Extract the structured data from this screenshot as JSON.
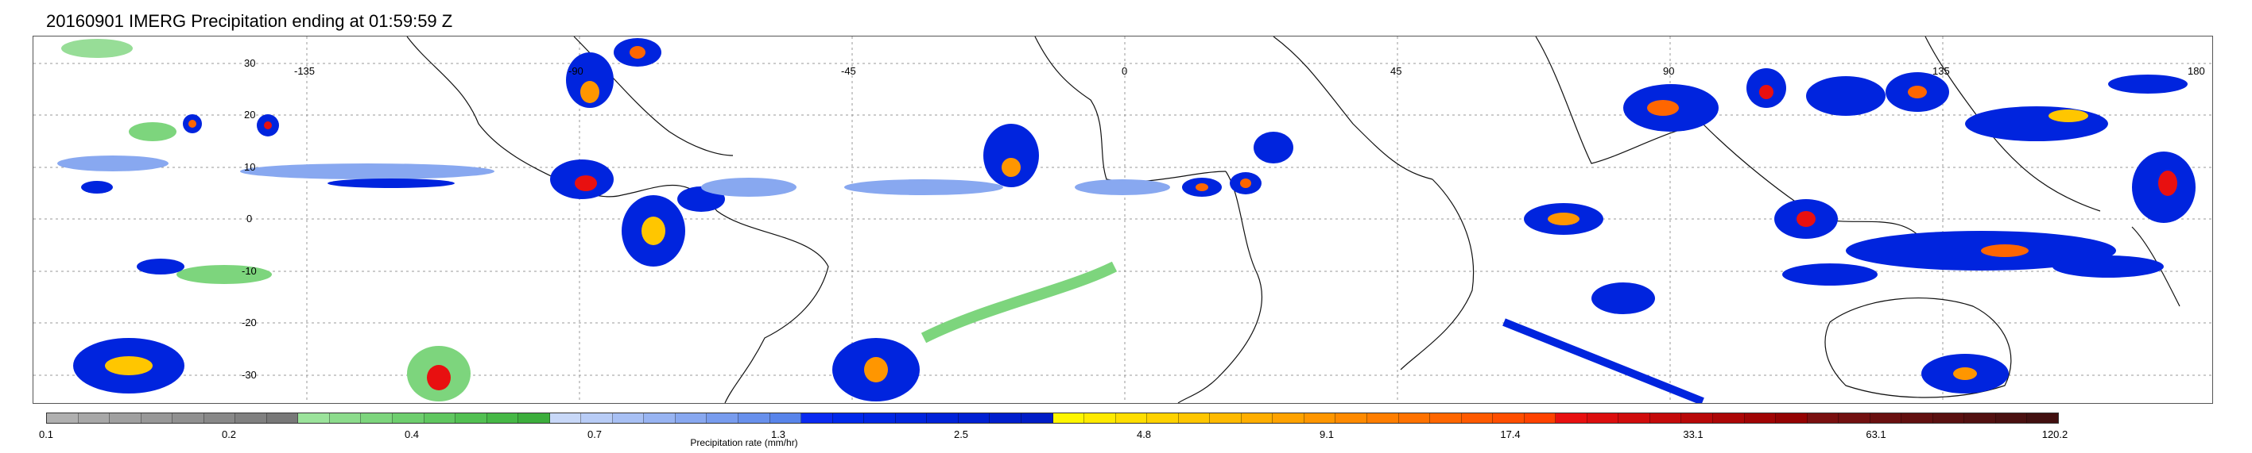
{
  "title": "20160901 IMERG Precipitation ending at 01:59:59 Z",
  "map": {
    "lat_labels": [
      "30",
      "20",
      "10",
      "0",
      "-10",
      "-20",
      "-30"
    ],
    "lon_labels": [
      "-135",
      "-90",
      "-45",
      "0",
      "45",
      "90",
      "135",
      "180"
    ]
  },
  "colorbar": {
    "label": "Precipitation rate (mm/hr)",
    "ticks": [
      "0.1",
      "0.2",
      "0.4",
      "0.7",
      "1.3",
      "2.5",
      "4.8",
      "9.1",
      "17.4",
      "33.1",
      "63.1",
      "120.2"
    ],
    "colors": [
      "#b0b0b0",
      "#a8a8a8",
      "#a0a0a0",
      "#989898",
      "#909090",
      "#888888",
      "#808080",
      "#787878",
      "#9be39b",
      "#8cdc8c",
      "#7dd57d",
      "#6ece6e",
      "#60c760",
      "#52c052",
      "#46b846",
      "#3cae3c",
      "#c8d8f8",
      "#b8ccf6",
      "#a8c0f4",
      "#98b4f2",
      "#88a8f0",
      "#789cee",
      "#6890ec",
      "#5884ea",
      "#0a2af0",
      "#0028ea",
      "#0026e4",
      "#0024de",
      "#0022d8",
      "#0020d2",
      "#001ecc",
      "#001cc6",
      "#fff600",
      "#ffea00",
      "#ffde00",
      "#ffd200",
      "#ffc600",
      "#ffba00",
      "#ffae00",
      "#ffa200",
      "#ff9600",
      "#ff8a00",
      "#ff7e00",
      "#ff7200",
      "#ff6600",
      "#ff5a00",
      "#ff4e00",
      "#ff4200",
      "#e81010",
      "#dc0e0e",
      "#d00c0c",
      "#c40a0a",
      "#b80808",
      "#ac0606",
      "#a00404",
      "#940202",
      "#7a1010",
      "#721010",
      "#6a1010",
      "#621010",
      "#5a1010",
      "#521010",
      "#4a1010",
      "#421010"
    ]
  }
}
